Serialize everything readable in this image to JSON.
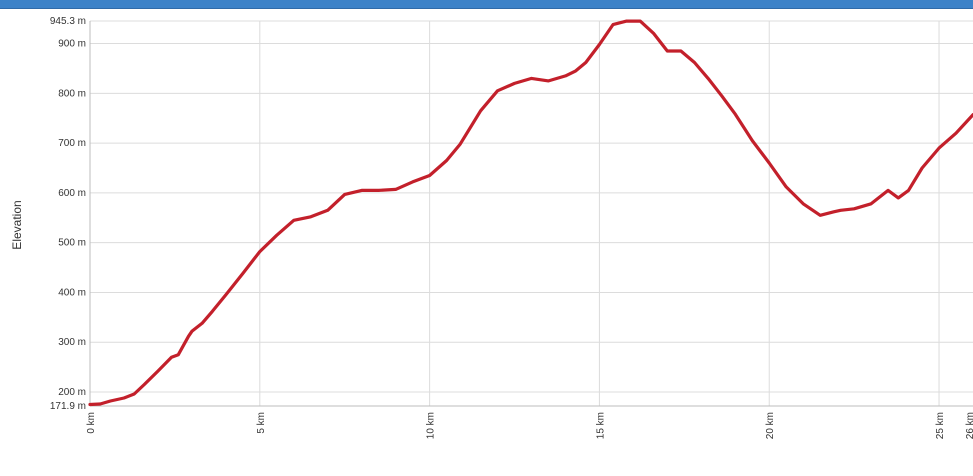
{
  "colors": {
    "header_bar": "#3c82c8",
    "line": "#c3202b",
    "grid": "#dcdcdc"
  },
  "chart_data": {
    "type": "line",
    "ylabel": "Elevation",
    "xlabel": "",
    "title": "",
    "xlim": [
      0,
      26.0
    ],
    "ylim": [
      171.9,
      945.3
    ],
    "grid": true,
    "x_ticks": [
      {
        "value": 0,
        "label": "0 km"
      },
      {
        "value": 5,
        "label": "5 km"
      },
      {
        "value": 10,
        "label": "10 km"
      },
      {
        "value": 15,
        "label": "15 km"
      },
      {
        "value": 20,
        "label": "20 km"
      },
      {
        "value": 25,
        "label": "25 km"
      },
      {
        "value": 26.0,
        "label": "26 km"
      }
    ],
    "y_ticks": [
      {
        "value": 171.9,
        "label": "171.9 m"
      },
      {
        "value": 200,
        "label": "200 m"
      },
      {
        "value": 300,
        "label": "300 m"
      },
      {
        "value": 400,
        "label": "400 m"
      },
      {
        "value": 500,
        "label": "500 m"
      },
      {
        "value": 600,
        "label": "600 m"
      },
      {
        "value": 700,
        "label": "700 m"
      },
      {
        "value": 800,
        "label": "800 m"
      },
      {
        "value": 900,
        "label": "900 m"
      },
      {
        "value": 945.3,
        "label": "945.3 m"
      }
    ],
    "series": [
      {
        "x": [
          0.0,
          0.3,
          0.6,
          1.0,
          1.3,
          1.6,
          2.0,
          2.4,
          2.6,
          2.9,
          3.0,
          3.3,
          3.6,
          4.0,
          4.5,
          5.0,
          5.5,
          6.0,
          6.5,
          7.0,
          7.5,
          8.0,
          8.5,
          9.0,
          9.5,
          10.0,
          10.5,
          10.9,
          11.5,
          12.0,
          12.5,
          13.0,
          13.5,
          14.0,
          14.3,
          14.6,
          15.0,
          15.4,
          15.8,
          16.2,
          16.6,
          17.0,
          17.4,
          17.8,
          18.2,
          18.6,
          19.0,
          19.5,
          20.0,
          20.5,
          21.0,
          21.5,
          21.9,
          22.1,
          22.5,
          23.0,
          23.5,
          23.8,
          24.1,
          24.5,
          25.0,
          25.5,
          26.0
        ],
        "y": [
          175,
          176,
          182,
          188,
          196,
          215,
          242,
          270,
          275,
          312,
          322,
          338,
          362,
          395,
          438,
          482,
          515,
          545,
          552,
          565,
          597,
          605,
          605,
          607,
          622,
          635,
          665,
          698,
          765,
          805,
          820,
          830,
          825,
          835,
          845,
          862,
          898,
          938,
          945,
          945,
          920,
          885,
          885,
          862,
          830,
          795,
          758,
          705,
          660,
          612,
          578,
          555,
          562,
          565,
          568,
          578,
          605,
          590,
          605,
          650,
          690,
          720,
          757
        ]
      }
    ]
  }
}
